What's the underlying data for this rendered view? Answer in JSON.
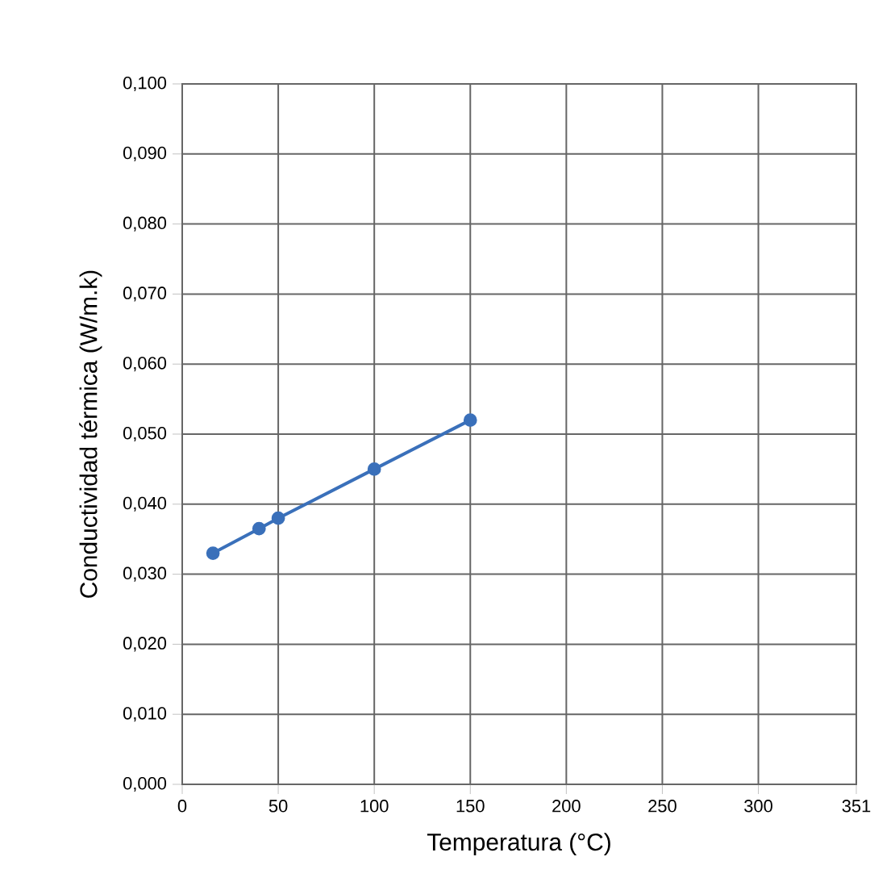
{
  "chart_data": {
    "type": "line",
    "xlabel": "Temperatura (°C)",
    "ylabel": "Conductividad térmica (W/m.k)",
    "x": [
      16,
      40,
      50,
      100,
      150
    ],
    "series": [
      {
        "color": "#3a70ba",
        "values": [
          0.033,
          0.0365,
          0.038,
          0.045,
          0.052
        ]
      }
    ],
    "xlim": [
      0,
      351
    ],
    "xticks": [
      0,
      50,
      100,
      150,
      200,
      250,
      300,
      351
    ],
    "ylim": [
      0,
      0.1
    ],
    "yticks": [
      {
        "value": 0,
        "label": "0,000"
      },
      {
        "value": 0.01,
        "label": "0,010"
      },
      {
        "value": 0.02,
        "label": "0,020"
      },
      {
        "value": 0.03,
        "label": "0,030"
      },
      {
        "value": 0.04,
        "label": "0,040"
      },
      {
        "value": 0.05,
        "label": "0,050"
      },
      {
        "value": 0.06,
        "label": "0,060"
      },
      {
        "value": 0.07,
        "label": "0,070"
      },
      {
        "value": 0.08,
        "label": "0,080"
      },
      {
        "value": 0.09,
        "label": "0,090"
      },
      {
        "value": 0.1,
        "label": "0,100"
      }
    ],
    "grid": true,
    "marker": "circle",
    "line_style": "solid"
  }
}
